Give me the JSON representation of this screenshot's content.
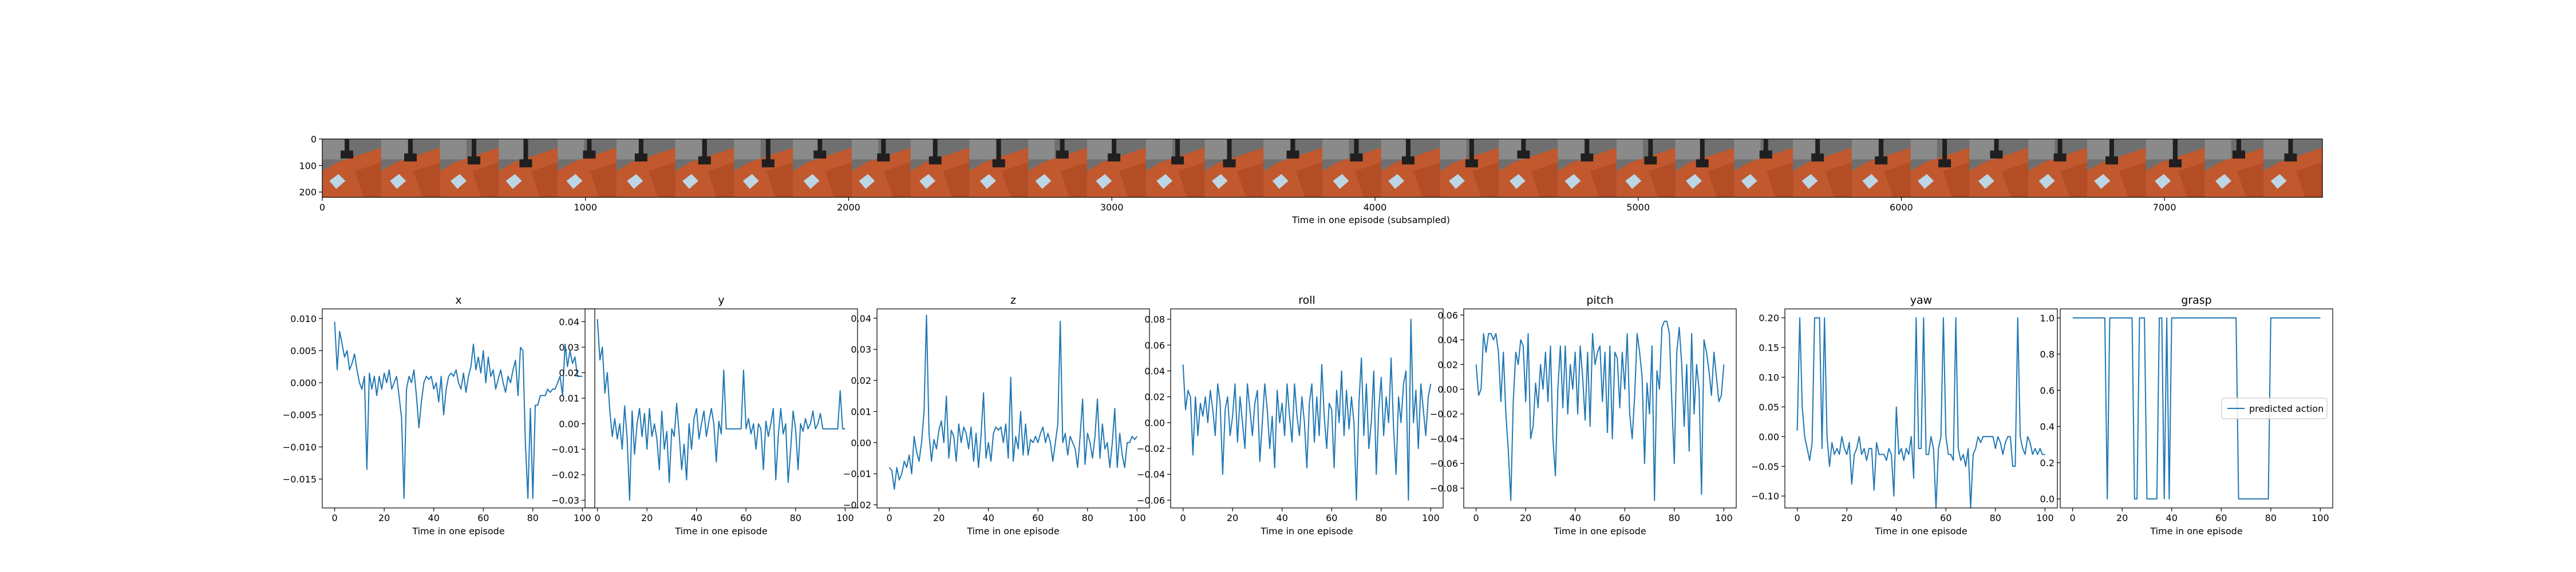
{
  "filmstrip": {
    "xlabel": "Time in one episode (subsampled)",
    "x_ticks": [
      0,
      1000,
      2000,
      3000,
      4000,
      5000,
      6000,
      7000
    ],
    "y_ticks": [
      0,
      100,
      200
    ],
    "xlim": [
      0,
      7600
    ],
    "ylim": [
      0,
      220
    ],
    "frame_count": 34,
    "colors": {
      "table": "#c2582e",
      "table_dark": "#a84520",
      "wall": "#6f6f6f",
      "wall_light": "#8a8a8a",
      "object": "#bcd6e6",
      "gripper": "#1f1f1f"
    }
  },
  "series_color": "#1f77b4",
  "chart_data": [
    {
      "type": "line",
      "title": "x",
      "xlabel": "Time in one episode",
      "ylim": [
        -0.0195,
        0.0115
      ],
      "yticks": [
        -0.015,
        -0.01,
        -0.005,
        0.0,
        0.005,
        0.01
      ],
      "tick_labels": [
        "−0.015",
        "−0.010",
        "−0.005",
        "0.000",
        "0.005",
        "0.010"
      ],
      "xlim": [
        -5,
        105
      ],
      "xticks": [
        0,
        20,
        40,
        60,
        80,
        100
      ],
      "values": [
        0.0095,
        0.002,
        0.008,
        0.006,
        0.004,
        0.005,
        0.002,
        0.003,
        0.0045,
        0.002,
        0.0,
        -0.001,
        0.001,
        -0.0135,
        0.0015,
        -0.001,
        0.001,
        -0.002,
        0.001,
        -0.001,
        0.0015,
        0.0,
        0.002,
        -0.001,
        0.0,
        0.001,
        -0.002,
        -0.0055,
        -0.018,
        -0.001,
        0.001,
        0.0,
        0.002,
        -0.002,
        -0.007,
        -0.003,
        0.0,
        0.001,
        0.0005,
        0.001,
        -0.001,
        0.0,
        -0.003,
        0.001,
        -0.005,
        -0.001,
        0.001,
        0.0015,
        0.001,
        0.002,
        0.0,
        -0.001,
        0.0015,
        -0.0015,
        0.001,
        0.0025,
        0.006,
        0.002,
        0.004,
        0.0015,
        0.005,
        0.0,
        0.004,
        0.001,
        0.002,
        -0.001,
        0.0005,
        0.002,
        0.0,
        -0.0015,
        0.001,
        0.0,
        0.002,
        0.0035,
        -0.002,
        0.0055,
        0.005,
        -0.0095,
        -0.018,
        -0.004,
        -0.018,
        -0.0035,
        -0.0035,
        -0.002,
        -0.002,
        -0.002,
        -0.001,
        -0.0015,
        -0.001,
        -0.001,
        0.0,
        0.001,
        -0.002,
        0.006,
        0.0025,
        0.005,
        0.003,
        0.004,
        0.001,
        0.001,
        0.001
      ]
    },
    {
      "type": "line",
      "title": "y",
      "xlabel": "Time in one episode",
      "ylim": [
        -0.033,
        0.045
      ],
      "yticks": [
        -0.03,
        -0.02,
        -0.01,
        0.0,
        0.01,
        0.02,
        0.03,
        0.04
      ],
      "tick_labels": [
        "−0.03",
        "−0.02",
        "−0.01",
        "0.00",
        "0.01",
        "0.02",
        "0.03",
        "0.04"
      ],
      "xlim": [
        -5,
        105
      ],
      "xticks": [
        0,
        20,
        40,
        60,
        80,
        100
      ],
      "values": [
        0.041,
        0.025,
        0.03,
        0.012,
        0.02,
        0.005,
        -0.005,
        0.002,
        -0.006,
        0.0,
        -0.01,
        0.007,
        -0.006,
        -0.03,
        0.005,
        -0.012,
        0.0,
        0.006,
        -0.005,
        0.004,
        -0.01,
        0.006,
        -0.005,
        0.0,
        -0.006,
        -0.018,
        0.005,
        -0.01,
        -0.003,
        -0.023,
        -0.002,
        -0.005,
        0.008,
        -0.004,
        -0.018,
        -0.008,
        -0.022,
        0.0,
        -0.01,
        0.002,
        0.006,
        -0.006,
        0.0,
        0.005,
        -0.005,
        0.001,
        0.006,
        0.0,
        -0.015,
        0.001,
        -0.004,
        0.021,
        -0.002,
        -0.002,
        -0.002,
        -0.002,
        -0.002,
        -0.002,
        -0.002,
        0.021,
        -0.002,
        0.002,
        -0.004,
        0.0,
        -0.01,
        0.0,
        -0.002,
        -0.018,
        0.001,
        -0.005,
        0.0,
        0.006,
        -0.022,
        -0.005,
        0.006,
        -0.004,
        0.0,
        -0.023,
        -0.01,
        0.005,
        -0.002,
        -0.018,
        0.0,
        -0.003,
        0.002,
        -0.002,
        0.0,
        0.005,
        -0.002,
        0.0,
        0.004,
        -0.002,
        -0.002,
        -0.002,
        -0.002,
        -0.002,
        -0.002,
        -0.002,
        0.013,
        -0.002,
        -0.002
      ]
    },
    {
      "type": "line",
      "title": "z",
      "xlabel": "Time in one episode",
      "ylim": [
        -0.021,
        0.043
      ],
      "yticks": [
        -0.02,
        -0.01,
        0.0,
        0.01,
        0.02,
        0.03,
        0.04
      ],
      "tick_labels": [
        "−0.02",
        "−0.01",
        "0.00",
        "0.01",
        "0.02",
        "0.03",
        "0.04"
      ],
      "xlim": [
        -5,
        105
      ],
      "xticks": [
        0,
        20,
        40,
        60,
        80,
        100
      ],
      "values": [
        -0.008,
        -0.009,
        -0.015,
        -0.008,
        -0.012,
        -0.01,
        -0.006,
        -0.008,
        -0.004,
        -0.01,
        0.002,
        -0.003,
        -0.006,
        0.0,
        0.01,
        0.041,
        0.003,
        -0.006,
        0.001,
        -0.002,
        0.004,
        0.007,
        0.0,
        0.015,
        -0.005,
        0.004,
        0.002,
        -0.006,
        0.006,
        0.0,
        0.005,
        0.003,
        -0.002,
        0.005,
        -0.006,
        0.003,
        -0.008,
        0.002,
        0.016,
        -0.005,
        0.0,
        -0.006,
        0.003,
        0.005,
        0.004,
        0.005,
        0.0,
        0.006,
        -0.005,
        0.021,
        -0.006,
        0.002,
        -0.002,
        0.01,
        -0.004,
        0.006,
        -0.004,
        0.001,
        0.0,
        0.002,
        0.0,
        0.003,
        0.005,
        0.0,
        0.003,
        0.0,
        -0.006,
        0.0,
        0.006,
        0.039,
        0.0,
        0.003,
        -0.004,
        0.002,
        0.0,
        -0.002,
        -0.008,
        0.002,
        0.014,
        -0.007,
        0.003,
        0.0,
        -0.005,
        0.002,
        0.014,
        -0.005,
        0.006,
        -0.002,
        0.0,
        -0.008,
        0.0,
        0.011,
        -0.008,
        0.003,
        -0.004,
        -0.008,
        0.0,
        0.0,
        0.002,
        0.001,
        0.002
      ]
    },
    {
      "type": "line",
      "title": "roll",
      "xlabel": "Time in one episode",
      "ylim": [
        -0.066,
        0.088
      ],
      "yticks": [
        -0.06,
        -0.04,
        -0.02,
        0.0,
        0.02,
        0.04,
        0.06,
        0.08
      ],
      "tick_labels": [
        "−0.06",
        "−0.04",
        "−0.02",
        "0.00",
        "0.02",
        "0.04",
        "0.06",
        "0.08"
      ],
      "xlim": [
        -5,
        105
      ],
      "xticks": [
        0,
        20,
        40,
        60,
        80,
        100
      ],
      "values": [
        0.045,
        0.01,
        0.025,
        0.02,
        -0.025,
        0.02,
        -0.01,
        0.015,
        0.005,
        0.02,
        0.0,
        0.025,
        0.01,
        -0.01,
        0.03,
        0.015,
        -0.04,
        0.01,
        0.02,
        -0.01,
        0.005,
        0.03,
        -0.015,
        0.02,
        0.0,
        -0.02,
        0.03,
        0.01,
        -0.01,
        0.015,
        0.025,
        -0.03,
        0.0,
        0.03,
        0.01,
        -0.02,
        0.005,
        -0.035,
        0.025,
        0.0,
        0.015,
        -0.01,
        0.03,
        0.005,
        -0.015,
        0.03,
        0.005,
        -0.01,
        0.02,
        0.0,
        -0.035,
        0.015,
        0.03,
        -0.015,
        0.02,
        -0.01,
        0.045,
        0.005,
        -0.02,
        0.015,
        0.01,
        -0.035,
        0.025,
        0.0,
        0.04,
        -0.01,
        0.025,
        -0.005,
        0.02,
        0.0,
        -0.06,
        0.015,
        0.05,
        -0.01,
        0.03,
        -0.02,
        0.0,
        0.04,
        -0.04,
        0.01,
        0.035,
        -0.01,
        0.02,
        0.0,
        0.05,
        -0.005,
        -0.04,
        0.02,
        0.0,
        0.03,
        0.04,
        -0.06,
        0.08,
        0.0,
        0.025,
        -0.02,
        0.03,
        0.01,
        -0.01,
        0.02,
        0.03
      ]
    },
    {
      "type": "line",
      "title": "pitch",
      "xlabel": "Time in one episode",
      "ylim": [
        -0.096,
        0.065
      ],
      "yticks": [
        -0.08,
        -0.06,
        -0.04,
        -0.02,
        0.0,
        0.02,
        0.04,
        0.06
      ],
      "tick_labels": [
        "−0.08",
        "−0.06",
        "−0.04",
        "−0.02",
        "0.00",
        "0.02",
        "0.04",
        "0.06"
      ],
      "xlim": [
        -5,
        105
      ],
      "xticks": [
        0,
        20,
        40,
        60,
        80,
        100
      ],
      "values": [
        0.02,
        -0.005,
        0.0,
        0.045,
        0.03,
        0.045,
        0.045,
        0.04,
        0.045,
        0.03,
        -0.01,
        0.03,
        -0.02,
        -0.05,
        -0.09,
        -0.01,
        0.03,
        0.02,
        0.04,
        0.035,
        -0.01,
        0.045,
        -0.04,
        -0.03,
        0.005,
        -0.015,
        0.02,
        0.0,
        0.03,
        -0.01,
        0.035,
        -0.04,
        -0.07,
        0.0,
        0.035,
        -0.015,
        0.035,
        -0.02,
        0.02,
        0.0,
        0.03,
        -0.02,
        0.035,
        0.01,
        -0.025,
        0.03,
        -0.03,
        0.045,
        0.02,
        0.03,
        0.035,
        -0.01,
        0.03,
        -0.035,
        0.035,
        -0.04,
        0.03,
        0.025,
        -0.015,
        0.03,
        0.0,
        0.045,
        -0.02,
        -0.04,
        -0.005,
        0.045,
        0.03,
        0.01,
        -0.06,
        0.005,
        -0.02,
        0.035,
        -0.09,
        0.015,
        0.0,
        0.05,
        0.055,
        0.055,
        0.045,
        -0.01,
        -0.06,
        0.03,
        0.05,
        0.02,
        -0.03,
        0.02,
        -0.05,
        0.045,
        -0.02,
        0.02,
        0.0,
        -0.085,
        0.04,
        0.03,
        0.015,
        -0.005,
        0.03,
        0.01,
        -0.01,
        -0.005,
        0.02
      ]
    },
    {
      "type": "line",
      "title": "yaw",
      "xlabel": "Time in one episode",
      "ylim": [
        -0.12,
        0.215
      ],
      "yticks": [
        -0.1,
        -0.05,
        0.0,
        0.05,
        0.1,
        0.15,
        0.2
      ],
      "tick_labels": [
        "−0.10",
        "−0.05",
        "0.00",
        "0.05",
        "0.10",
        "0.15",
        "0.20"
      ],
      "xlim": [
        -5,
        105
      ],
      "xticks": [
        0,
        20,
        40,
        60,
        80,
        100
      ],
      "values": [
        0.01,
        0.2,
        0.05,
        0.0,
        -0.02,
        -0.04,
        -0.01,
        0.2,
        0.2,
        0.2,
        -0.02,
        0.2,
        0.0,
        -0.05,
        -0.01,
        -0.03,
        -0.02,
        -0.03,
        0.0,
        -0.02,
        -0.03,
        -0.01,
        -0.08,
        -0.03,
        -0.02,
        0.0,
        -0.03,
        -0.02,
        -0.04,
        -0.02,
        -0.02,
        -0.09,
        -0.01,
        -0.03,
        -0.03,
        -0.03,
        -0.04,
        -0.02,
        -0.03,
        -0.1,
        0.05,
        -0.03,
        -0.02,
        -0.04,
        -0.02,
        -0.03,
        0.0,
        -0.07,
        0.2,
        -0.02,
        -0.02,
        0.2,
        -0.03,
        -0.03,
        0.0,
        -0.02,
        -0.12,
        -0.02,
        0.0,
        0.2,
        0.0,
        -0.03,
        -0.03,
        -0.04,
        0.2,
        -0.02,
        -0.04,
        -0.03,
        -0.05,
        -0.02,
        -0.12,
        -0.03,
        -0.02,
        0.0,
        -0.01,
        0.0,
        0.0,
        0.0,
        0.0,
        0.0,
        -0.02,
        0.0,
        -0.01,
        -0.03,
        -0.01,
        0.0,
        0.0,
        -0.05,
        -0.05,
        0.2,
        0.0,
        -0.02,
        -0.03,
        0.0,
        -0.01,
        -0.03,
        -0.02,
        -0.03,
        -0.02,
        -0.03,
        -0.03
      ]
    },
    {
      "type": "line",
      "title": "grasp",
      "xlabel": "Time in one episode",
      "ylim": [
        -0.05,
        1.05
      ],
      "yticks": [
        0.0,
        0.2,
        0.4,
        0.6,
        0.8,
        1.0
      ],
      "tick_labels": [
        "0.0",
        "0.2",
        "0.4",
        "0.6",
        "0.8",
        "1.0"
      ],
      "xlim": [
        -5,
        105
      ],
      "xticks": [
        0,
        20,
        40,
        60,
        80,
        100
      ],
      "legend": "predicted action",
      "legend_loc": "center-right",
      "values": [
        1,
        1,
        1,
        1,
        1,
        1,
        1,
        1,
        1,
        1,
        1,
        1,
        1,
        1,
        0,
        1,
        1,
        1,
        1,
        1,
        1,
        1,
        1,
        1,
        1,
        0,
        0,
        1,
        1,
        1,
        0,
        0,
        0,
        0,
        0,
        1,
        1,
        0,
        1,
        0,
        1,
        1,
        1,
        1,
        1,
        1,
        1,
        1,
        1,
        1,
        1,
        1,
        1,
        1,
        1,
        1,
        1,
        1,
        1,
        1,
        1,
        1,
        1,
        1,
        1,
        1,
        1,
        0,
        0,
        0,
        0,
        0,
        0,
        0,
        0,
        0,
        0,
        0,
        0,
        0,
        1,
        1,
        1,
        1,
        1,
        1,
        1,
        1,
        1,
        1,
        1,
        1,
        1,
        1,
        1,
        1,
        1,
        1,
        1,
        1,
        1
      ]
    }
  ]
}
